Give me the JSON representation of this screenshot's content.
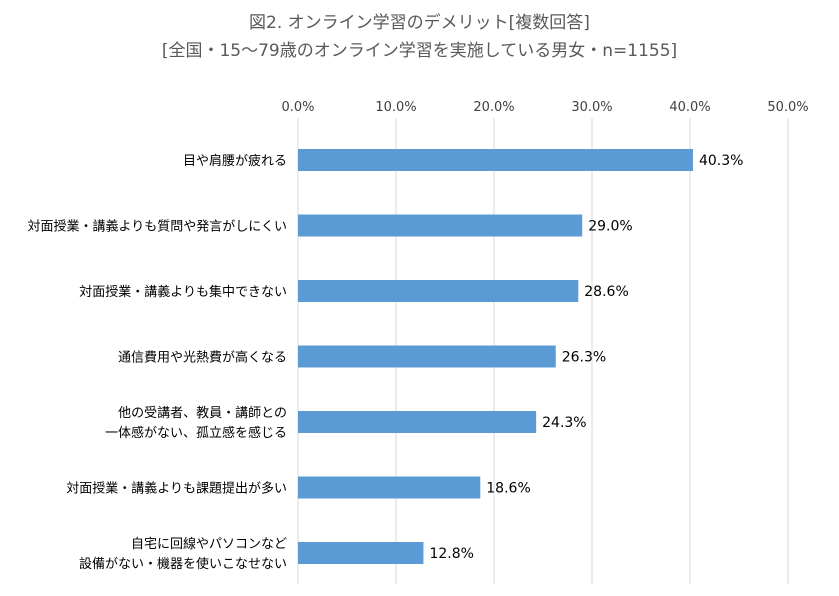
{
  "chart_data": {
    "type": "bar",
    "orientation": "horizontal",
    "title": "図2. オンライン学習のデメリット[複数回答]",
    "subtitle": "[全国・15～79歳のオンライン学習を実施している男女・n=1155]",
    "categories": [
      [
        "目や肩腰が疲れる"
      ],
      [
        "対面授業・講義よりも質問や発言がしにくい"
      ],
      [
        "対面授業・講義よりも集中できない"
      ],
      [
        "通信費用や光熱費が高くなる"
      ],
      [
        "他の受講者、教員・講師との",
        "一体感がない、孤立感を感じる"
      ],
      [
        "対面授業・講義よりも課題提出が多い"
      ],
      [
        "自宅に回線やパソコンなど",
        "設備がない・機器を使いこなせない"
      ]
    ],
    "values": [
      40.3,
      29.0,
      28.6,
      26.3,
      24.3,
      18.6,
      12.8
    ],
    "data_labels": [
      "40.3%",
      "29.0%",
      "28.6%",
      "26.3%",
      "24.3%",
      "18.6%",
      "12.8%"
    ],
    "xlim": [
      0,
      50
    ],
    "x_ticks": [
      0,
      10,
      20,
      30,
      40,
      50
    ],
    "x_tick_labels": [
      "0.0%",
      "10.0%",
      "20.0%",
      "30.0%",
      "40.0%",
      "50.0%"
    ],
    "axis_position": "top",
    "grid": true,
    "bar_color": "#5b9bd5",
    "grid_color": "#d9d9d9"
  }
}
